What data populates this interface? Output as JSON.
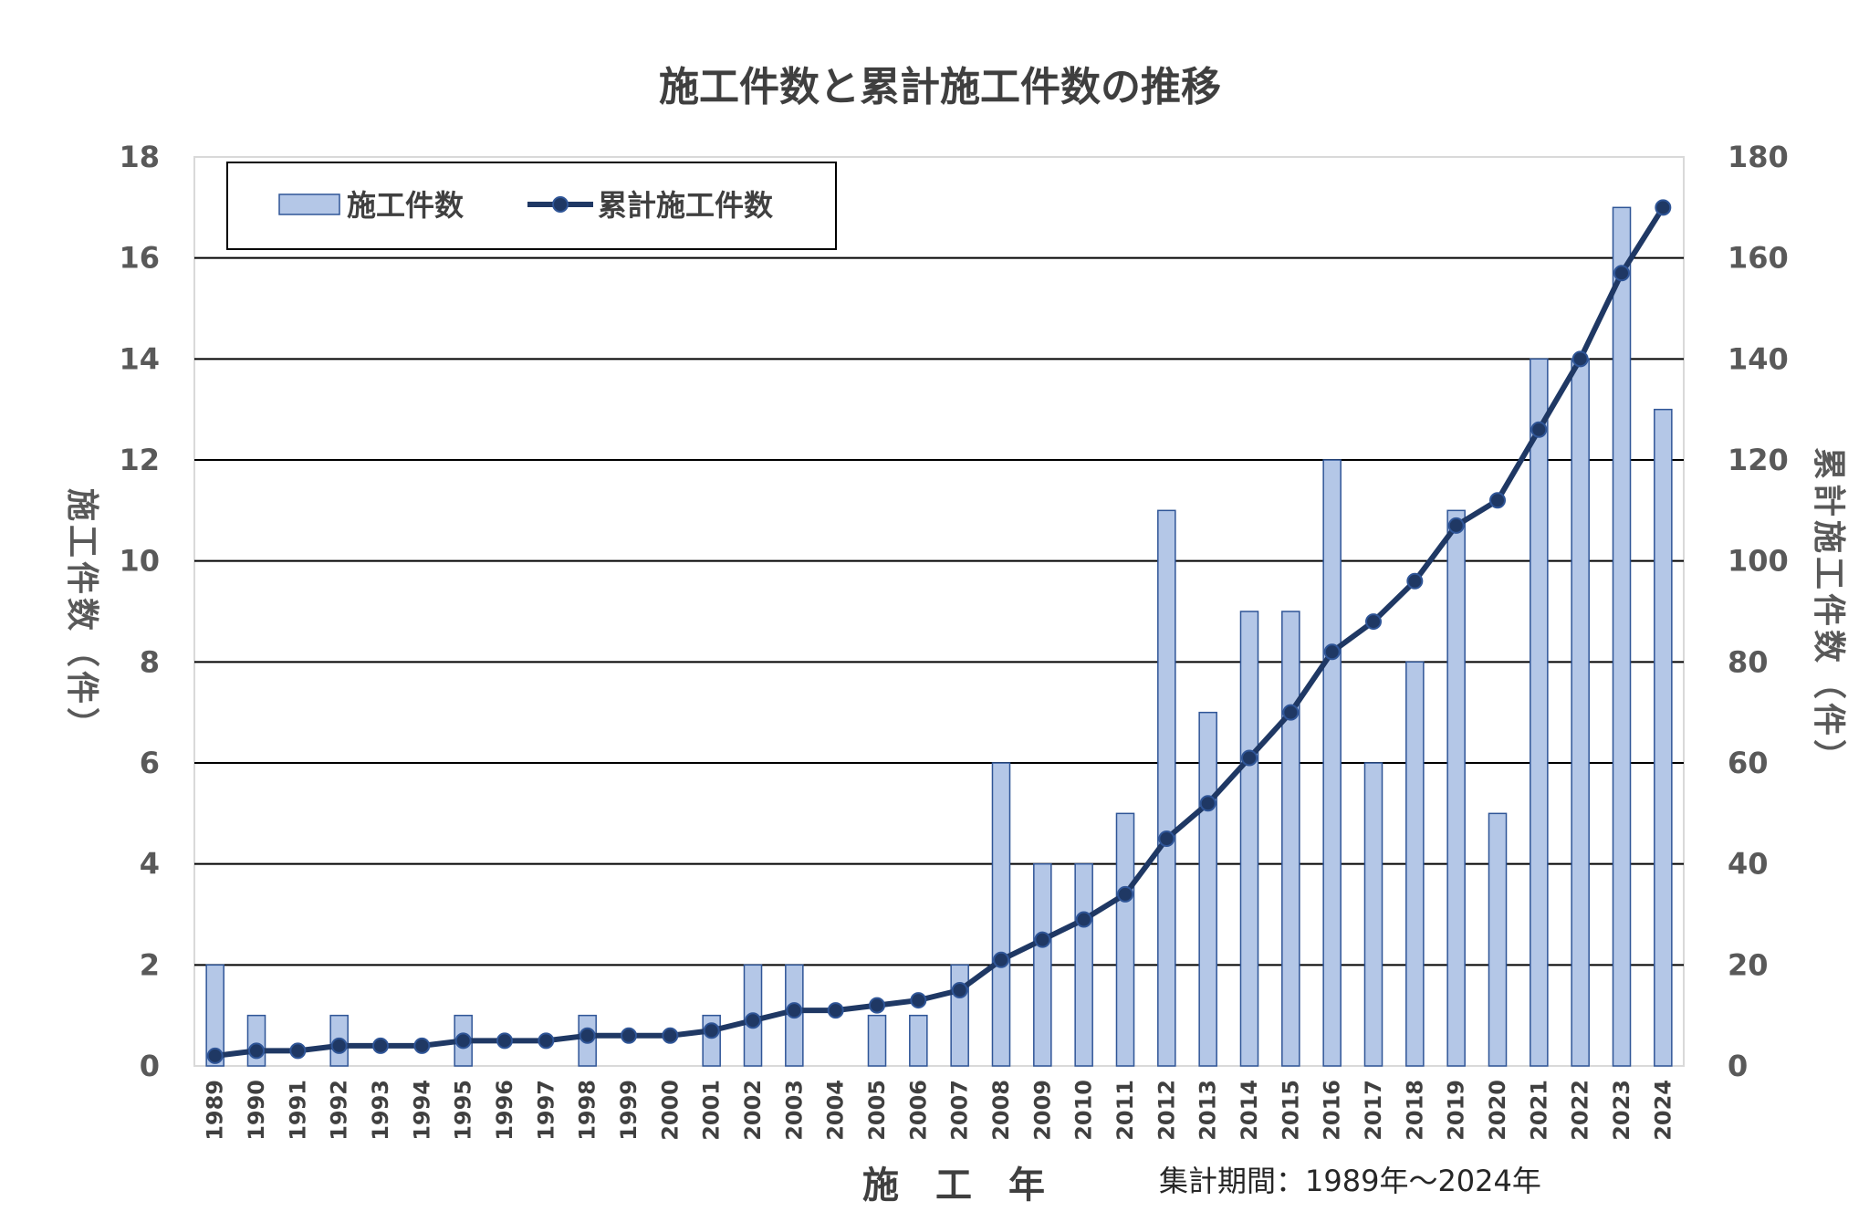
{
  "chart_data": {
    "type": "bar+line",
    "title": "施工件数と累計施工件数の推移",
    "xlabel": "施　工　年",
    "ylabel_left": "施工件数（件）",
    "ylabel_right": "累計施工件数（件）",
    "note": "集計期間：1989年～2024年",
    "ylim_left": [
      0,
      18
    ],
    "ylim_right": [
      0,
      180
    ],
    "yticks_left": [
      "0",
      "2",
      "4",
      "6",
      "8",
      "10",
      "12",
      "14",
      "16",
      "18"
    ],
    "yticks_right": [
      "0",
      "20",
      "40",
      "60",
      "80",
      "100",
      "120",
      "140",
      "160",
      "180"
    ],
    "grid": true,
    "legend_position": "top-left",
    "categories": [
      "1989",
      "1990",
      "1991",
      "1992",
      "1993",
      "1994",
      "1995",
      "1996",
      "1997",
      "1998",
      "1999",
      "2000",
      "2001",
      "2002",
      "2003",
      "2004",
      "2005",
      "2006",
      "2007",
      "2008",
      "2009",
      "2010",
      "2011",
      "2012",
      "2013",
      "2014",
      "2015",
      "2016",
      "2017",
      "2018",
      "2019",
      "2020",
      "2021",
      "2022",
      "2023",
      "2024"
    ],
    "series": [
      {
        "name": "施工件数",
        "type": "bar",
        "axis": "left",
        "color": "#b4c7e7",
        "edge": "#2f5597",
        "values": [
          2,
          1,
          0,
          1,
          0,
          0,
          1,
          0,
          0,
          1,
          0,
          0,
          1,
          2,
          2,
          0,
          1,
          1,
          2,
          6,
          4,
          4,
          5,
          11,
          7,
          9,
          9,
          12,
          6,
          8,
          11,
          5,
          14,
          14,
          17,
          13
        ]
      },
      {
        "name": "累計施工件数",
        "type": "line",
        "axis": "right",
        "color": "#1f3864",
        "values": [
          2,
          3,
          3,
          4,
          4,
          4,
          5,
          5,
          5,
          6,
          6,
          6,
          7,
          9,
          11,
          11,
          12,
          13,
          15,
          21,
          25,
          29,
          34,
          45,
          52,
          61,
          70,
          82,
          88,
          96,
          107,
          112,
          126,
          140,
          157,
          170
        ]
      }
    ]
  }
}
